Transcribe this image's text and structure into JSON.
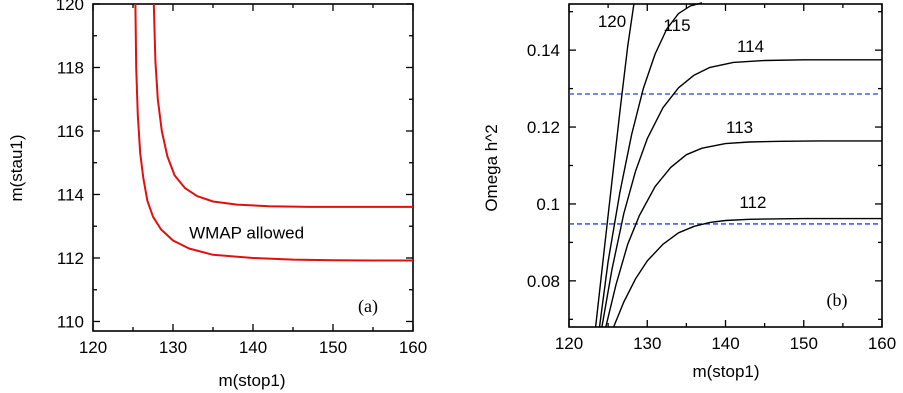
{
  "chart_data": [
    {
      "type": "line",
      "panel_label": "(a)",
      "xlabel": "m(stop1)",
      "ylabel": "m(stau1)",
      "xlim": [
        120,
        160
      ],
      "ylim": [
        109.7,
        120
      ],
      "x_ticks": [
        120,
        130,
        140,
        150,
        160
      ],
      "y_ticks": [
        110,
        112,
        114,
        116,
        118,
        120
      ],
      "grid": false,
      "annotations": [
        {
          "text": "WMAP allowed",
          "x": 139.2,
          "y": 112.8
        }
      ],
      "series": [
        {
          "color": "#e01010",
          "x": [
            125.3,
            125.4,
            125.6,
            125.9,
            126.3,
            126.8,
            127.5,
            128.5,
            130,
            132,
            135,
            140,
            145,
            150,
            155,
            160
          ],
          "y": [
            120,
            118,
            116.5,
            115.3,
            114.5,
            113.8,
            113.3,
            112.9,
            112.55,
            112.3,
            112.1,
            112.0,
            111.95,
            111.93,
            111.92,
            111.92
          ]
        },
        {
          "color": "#e01010",
          "x": [
            127.6,
            127.8,
            128.1,
            128.6,
            129.3,
            130.2,
            131.5,
            133,
            135,
            138,
            142,
            147,
            152,
            160
          ],
          "y": [
            120,
            118.2,
            117.0,
            116.0,
            115.2,
            114.6,
            114.2,
            113.95,
            113.78,
            113.68,
            113.63,
            113.61,
            113.61,
            113.61
          ]
        }
      ]
    },
    {
      "type": "line",
      "panel_label": "(b)",
      "xlabel": "m(stop1)",
      "ylabel": "Omega h^2",
      "xlim": [
        120,
        160
      ],
      "ylim": [
        0.068,
        0.152
      ],
      "x_ticks": [
        120,
        130,
        140,
        150,
        160
      ],
      "y_ticks": [
        0.08,
        0.1,
        0.12,
        0.14
      ],
      "grid": false,
      "reference_lines": [
        {
          "y": 0.0948,
          "color": "#2244cc",
          "style": "dashed"
        },
        {
          "y": 0.1286,
          "color": "#2244cc",
          "style": "dashed"
        }
      ],
      "series": [
        {
          "name": "112",
          "label": {
            "text": "112",
            "x": 143.5,
            "y": 0.099
          },
          "x": [
            125.7,
            127,
            128.5,
            130,
            132,
            134,
            136,
            138,
            140,
            143,
            146,
            150,
            155,
            160
          ],
          "y": [
            0.068,
            0.0745,
            0.0805,
            0.0852,
            0.0895,
            0.0925,
            0.0942,
            0.0952,
            0.0957,
            0.096,
            0.0961,
            0.0962,
            0.0962,
            0.0962
          ]
        },
        {
          "name": "113",
          "label": {
            "text": "113",
            "x": 141.8,
            "y": 0.1185
          },
          "x": [
            124.7,
            126,
            127.5,
            129,
            131,
            133,
            135,
            137,
            140,
            143,
            147,
            152,
            160
          ],
          "y": [
            0.068,
            0.079,
            0.0895,
            0.097,
            0.1045,
            0.1095,
            0.1128,
            0.1145,
            0.1157,
            0.1161,
            0.1163,
            0.1164,
            0.1164
          ]
        },
        {
          "name": "114",
          "label": {
            "text": "114",
            "x": 143.2,
            "y": 0.1395
          },
          "x": [
            124.2,
            125.5,
            127,
            128.5,
            130,
            132,
            134,
            136,
            138,
            141,
            145,
            150,
            155,
            160
          ],
          "y": [
            0.068,
            0.083,
            0.0975,
            0.1085,
            0.117,
            0.125,
            0.1302,
            0.1335,
            0.1355,
            0.1368,
            0.1373,
            0.1375,
            0.1375,
            0.1375
          ]
        },
        {
          "name": "115",
          "label": {
            "text": "115",
            "x": 133.8,
            "y": 0.145
          },
          "x": [
            123.9,
            125,
            126.5,
            128,
            129.5,
            131,
            132.5,
            134,
            135.5,
            137
          ],
          "y": [
            0.068,
            0.085,
            0.103,
            0.118,
            0.13,
            0.139,
            0.1455,
            0.1495,
            0.1515,
            0.1523
          ]
        },
        {
          "name": "120",
          "label": {
            "text": "120",
            "x": 125.5,
            "y": 0.146
          },
          "x": [
            123.4,
            124.5,
            125.5,
            126.5,
            127.5,
            128.3
          ],
          "y": [
            0.068,
            0.088,
            0.106,
            0.124,
            0.141,
            0.152
          ]
        }
      ]
    }
  ]
}
